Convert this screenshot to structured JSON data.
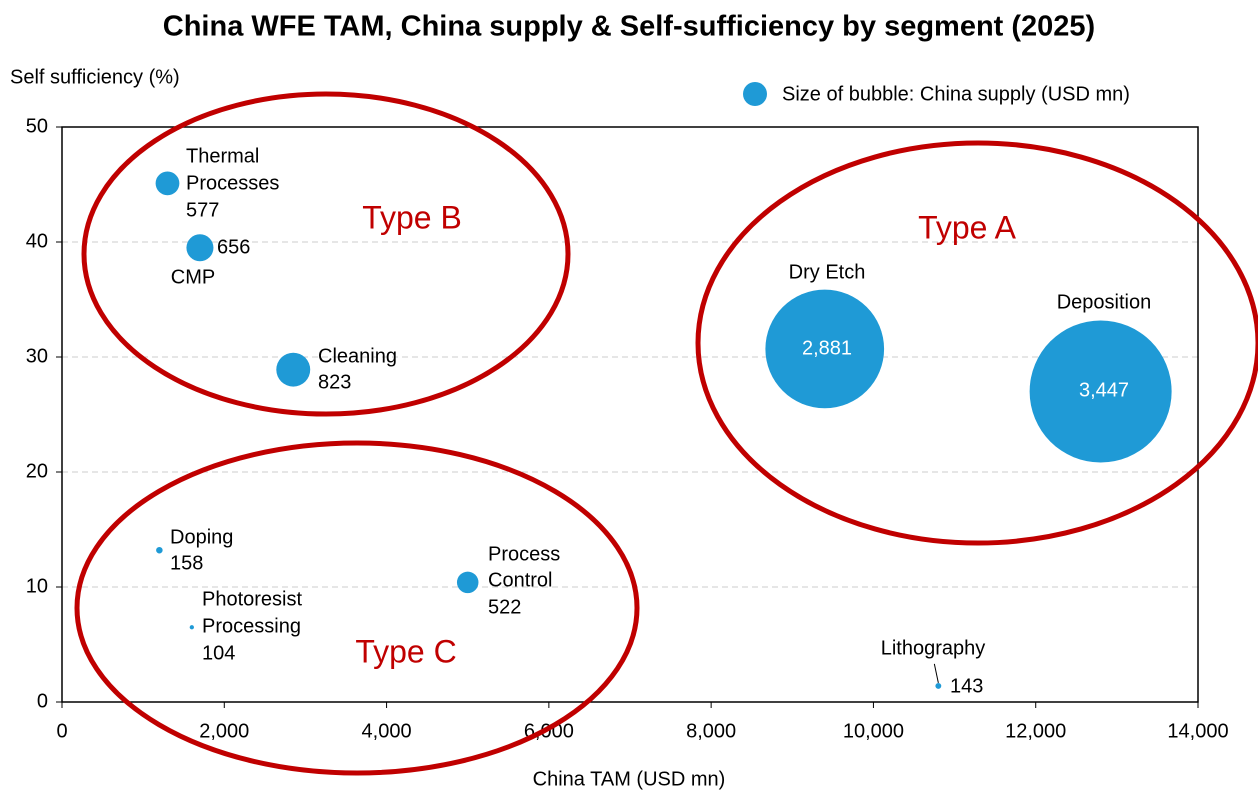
{
  "chart_data": {
    "type": "bubble",
    "title": "China WFE TAM, China supply & Self-sufficiency by segment (2025)",
    "x_label": "China TAM (USD mn)",
    "y_label": "Self sufficiency (%)",
    "xlim": [
      0,
      14000
    ],
    "xticks": [
      0,
      {
        "value": 2000,
        "label": "2,000"
      },
      {
        "value": 4000,
        "label": "4,000"
      },
      {
        "value": 6000,
        "label": "6,000"
      },
      {
        "value": 8000,
        "label": "8,000"
      },
      {
        "value": 10000,
        "label": "10,000"
      },
      {
        "value": 12000,
        "label": "12,000"
      },
      {
        "value": 14000,
        "label": "14,000"
      }
    ],
    "ylim": [
      0,
      50
    ],
    "yticks": [
      0,
      10,
      20,
      30,
      40,
      50
    ],
    "grid": true,
    "series": [
      {
        "name": "Size of bubble: China supply (USD mn)",
        "color": "#1f9ad6",
        "labels": [
          [
            "Thermal",
            "Processes"
          ],
          [
            "CMP"
          ],
          [
            "Cleaning"
          ],
          [
            "Dry Etch"
          ],
          [
            "Deposition"
          ],
          [
            "Doping"
          ],
          [
            "Photoresist",
            "Processing"
          ],
          [
            "Process",
            "Control"
          ],
          [
            "Lithography"
          ]
        ],
        "x": [
          1300,
          1700,
          2850,
          9400,
          12800,
          1200,
          1600,
          5000,
          10800
        ],
        "values": [
          45.1,
          39.5,
          28.9,
          30.7,
          27.0,
          13.2,
          6.5,
          10.4,
          1.4
        ],
        "sizes": [
          577,
          656,
          823,
          2881,
          3447,
          158,
          104,
          522,
          143
        ],
        "size_labels": [
          "577",
          "656",
          "823",
          "2,881",
          "3,447",
          "158",
          "104",
          "522",
          "143"
        ]
      }
    ],
    "annotations": [
      "Type A",
      "Type B",
      "Type C"
    ]
  }
}
